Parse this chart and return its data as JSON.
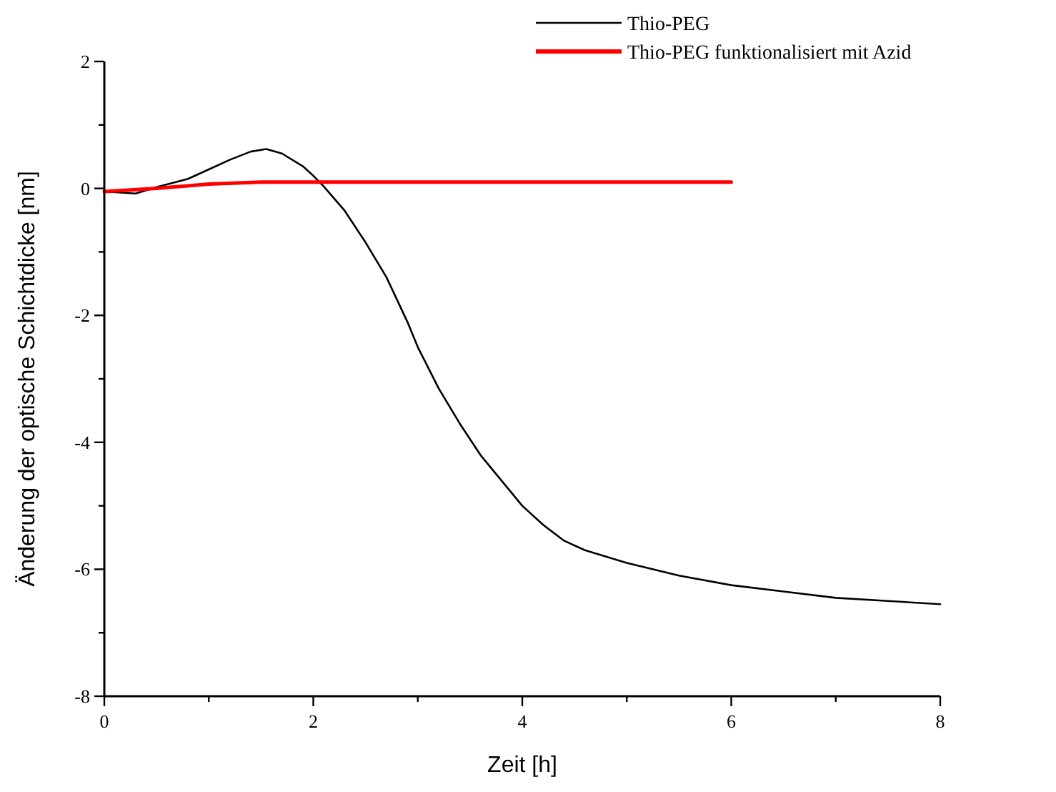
{
  "chart_data": {
    "type": "line",
    "xlabel": "Zeit [h]",
    "ylabel": "Änderung der optische Schichtdicke [nm]",
    "xlim": [
      0,
      8
    ],
    "xticks": [
      0,
      {
        "value": 1,
        "label": null
      },
      2,
      {
        "value": 3,
        "label": null
      },
      4,
      {
        "value": 5,
        "label": null
      },
      6,
      {
        "value": 7,
        "label": null
      },
      8
    ],
    "ylim": [
      -8,
      2
    ],
    "yticks": [
      -8,
      {
        "value": -7,
        "label": null
      },
      -6,
      {
        "value": -5,
        "label": null
      },
      -4,
      {
        "value": -3,
        "label": null
      },
      -2,
      {
        "value": -1,
        "label": null
      },
      0,
      {
        "value": 1,
        "label": null
      },
      2
    ],
    "grid": false,
    "legend": "top right",
    "marker": "none",
    "line_style": "solid",
    "series": [
      {
        "name": "Thio-PEG",
        "color": "#000000",
        "x": [
          0,
          0.3,
          0.5,
          0.8,
          1.0,
          1.2,
          1.4,
          1.55,
          1.7,
          1.9,
          2.0,
          2.1,
          2.3,
          2.5,
          2.7,
          2.9,
          3.0,
          3.2,
          3.4,
          3.6,
          3.8,
          4.0,
          4.2,
          4.4,
          4.6,
          5.0,
          5.5,
          6.0,
          6.5,
          7.0,
          7.5,
          8.0
        ],
        "values": [
          -0.05,
          -0.08,
          0.02,
          0.15,
          0.3,
          0.45,
          0.58,
          0.62,
          0.55,
          0.35,
          0.2,
          0.03,
          -0.35,
          -0.85,
          -1.4,
          -2.1,
          -2.5,
          -3.15,
          -3.7,
          -4.2,
          -4.6,
          -5.0,
          -5.3,
          -5.55,
          -5.7,
          -5.9,
          -6.1,
          -6.25,
          -6.35,
          -6.45,
          -6.5,
          -6.55
        ]
      },
      {
        "name": "Thio-PEG funktionalisiert mit Azid",
        "color": "#ff0000",
        "x": [
          0,
          0.5,
          1.0,
          1.5,
          2.0,
          3.0,
          4.0,
          5.0,
          6.0
        ],
        "values": [
          -0.05,
          0.0,
          0.07,
          0.1,
          0.1,
          0.1,
          0.1,
          0.1,
          0.1
        ]
      }
    ]
  }
}
